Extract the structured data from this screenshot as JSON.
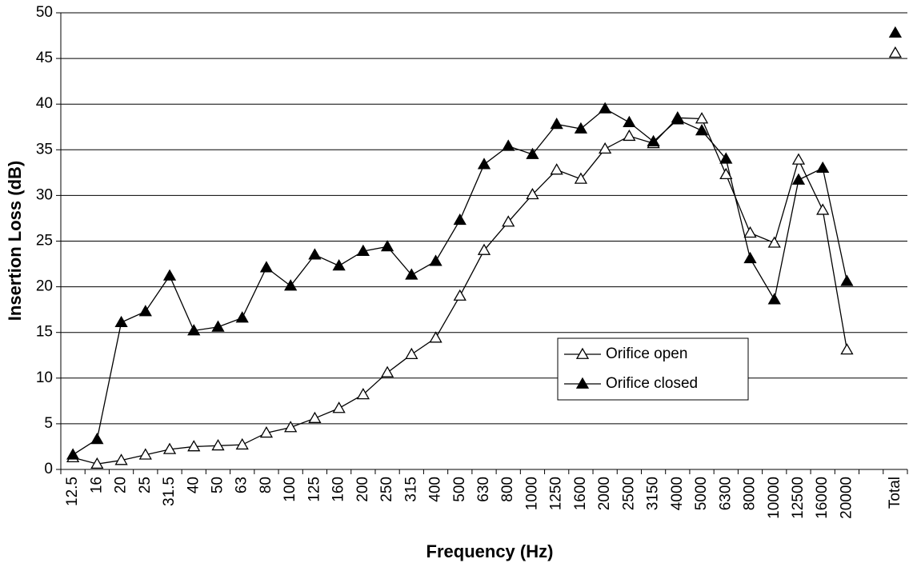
{
  "chart_data": {
    "type": "line",
    "x_label": "Frequency (Hz)",
    "y_label": "Insertion Loss (dB)",
    "categories": [
      "12.5",
      "16",
      "20",
      "25",
      "31.5",
      "40",
      "50",
      "63",
      "80",
      "100",
      "125",
      "160",
      "200",
      "250",
      "315",
      "400",
      "500",
      "630",
      "800",
      "1000",
      "1250",
      "1600",
      "2000",
      "2500",
      "3150",
      "4000",
      "5000",
      "6300",
      "8000",
      "10000",
      "12500",
      "16000",
      "20000",
      null,
      "Total"
    ],
    "series": [
      {
        "name": "Orifice open",
        "color": "#000000",
        "marker": "open-triangle",
        "values": [
          1.3,
          0.6,
          1.0,
          1.6,
          2.2,
          2.5,
          2.6,
          2.7,
          4.0,
          4.6,
          5.6,
          6.7,
          8.2,
          10.6,
          12.6,
          14.4,
          19.0,
          24.0,
          27.1,
          30.1,
          32.8,
          31.8,
          35.1,
          36.5,
          35.7,
          38.5,
          38.4,
          32.3,
          25.9,
          24.8,
          33.9,
          28.4,
          13.1,
          null,
          45.6
        ]
      },
      {
        "name": "Orifice closed",
        "color": "#000000",
        "marker": "filled-triangle",
        "values": [
          1.6,
          3.3,
          16.1,
          17.3,
          21.2,
          15.2,
          15.6,
          16.6,
          22.1,
          20.1,
          23.5,
          22.3,
          23.9,
          24.4,
          21.3,
          22.8,
          27.3,
          33.4,
          35.4,
          34.5,
          37.8,
          37.3,
          39.5,
          38.0,
          35.9,
          38.3,
          37.1,
          34.0,
          23.1,
          18.6,
          31.7,
          33.0,
          20.6,
          null,
          47.8
        ]
      }
    ],
    "ylim": [
      0,
      50
    ],
    "yticks": [
      0,
      5,
      10,
      15,
      20,
      25,
      30,
      35,
      40,
      45,
      50
    ],
    "grid": true
  }
}
